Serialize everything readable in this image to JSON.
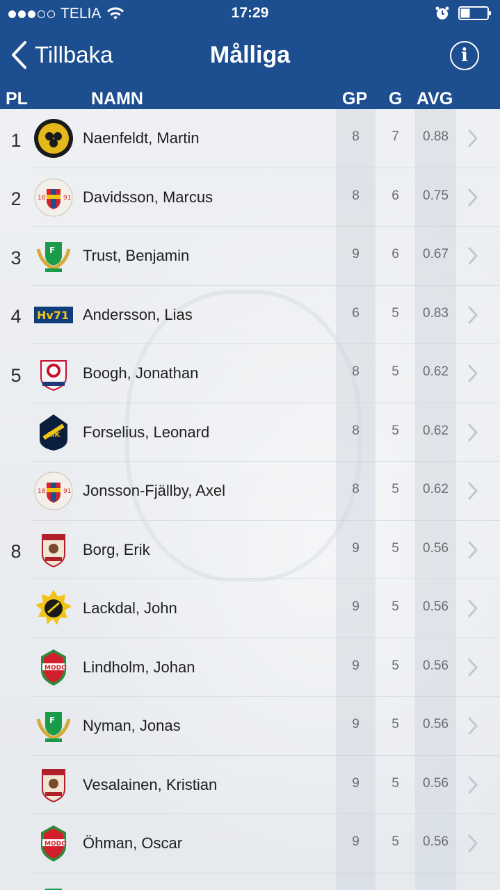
{
  "status": {
    "carrier": "TELIA",
    "time": "17:29",
    "signal_bars": 3,
    "signal_total": 5
  },
  "nav": {
    "back_label": "Tillbaka",
    "title": "Målliga",
    "info_label": "i"
  },
  "columns": {
    "pl": "PL",
    "namn": "NAMN",
    "gp": "GP",
    "g": "G",
    "avg": "AVG"
  },
  "colors": {
    "header_bg": "#1d4e8f"
  },
  "rows": [
    {
      "rank": "1",
      "name": "Naenfeldt, Martin",
      "gp": "8",
      "g": "7",
      "avg": "0.88",
      "logo": "brynas-icon"
    },
    {
      "rank": "2",
      "name": "Davidsson, Marcus",
      "gp": "8",
      "g": "6",
      "avg": "0.75",
      "logo": "djurgarden-icon"
    },
    {
      "rank": "3",
      "name": "Trust, Benjamin",
      "gp": "9",
      "g": "6",
      "avg": "0.67",
      "logo": "farjestad-icon"
    },
    {
      "rank": "4",
      "name": "Andersson, Lias",
      "gp": "6",
      "g": "5",
      "avg": "0.83",
      "logo": "hv71-icon"
    },
    {
      "rank": "5",
      "name": "Boogh, Jonathan",
      "gp": "8",
      "g": "5",
      "avg": "0.62",
      "logo": "linkoping-icon"
    },
    {
      "rank": "",
      "name": "Forselius, Leonard",
      "gp": "8",
      "g": "5",
      "avg": "0.62",
      "logo": "aik-icon"
    },
    {
      "rank": "",
      "name": "Jonsson-Fjällby, Axel",
      "gp": "8",
      "g": "5",
      "avg": "0.62",
      "logo": "djurgarden-icon"
    },
    {
      "rank": "8",
      "name": "Borg, Erik",
      "gp": "9",
      "g": "5",
      "avg": "0.56",
      "logo": "frolunda-icon"
    },
    {
      "rank": "",
      "name": "Lackdal, John",
      "gp": "9",
      "g": "5",
      "avg": "0.56",
      "logo": "skelleftea-icon"
    },
    {
      "rank": "",
      "name": "Lindholm, Johan",
      "gp": "9",
      "g": "5",
      "avg": "0.56",
      "logo": "modo-icon"
    },
    {
      "rank": "",
      "name": "Nyman, Jonas",
      "gp": "9",
      "g": "5",
      "avg": "0.56",
      "logo": "farjestad-icon"
    },
    {
      "rank": "",
      "name": "Vesalainen, Kristian",
      "gp": "9",
      "g": "5",
      "avg": "0.56",
      "logo": "frolunda-icon"
    },
    {
      "rank": "",
      "name": "Öhman, Oscar",
      "gp": "9",
      "g": "5",
      "avg": "0.56",
      "logo": "modo-icon"
    },
    {
      "rank": "",
      "name": "",
      "gp": "",
      "g": "",
      "avg": "",
      "logo": "farjestad-icon"
    }
  ]
}
